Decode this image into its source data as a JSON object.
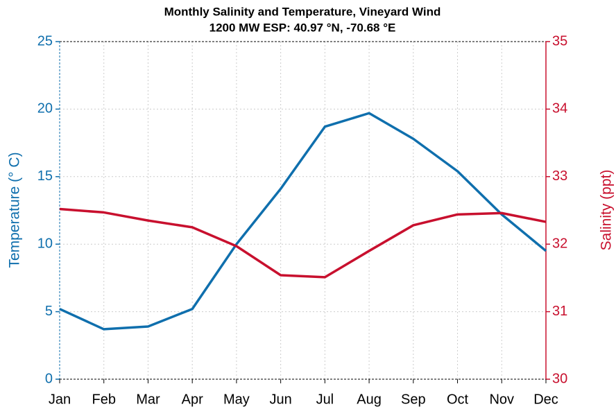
{
  "chart_data": {
    "type": "line",
    "title": "Monthly Salinity and Temperature, Vineyard Wind",
    "subtitle": "1200 MW ESP: 40.97 °N, -70.68 °E",
    "y_label": "Temperature (° C)",
    "y2_label": "Salinity (ppt)",
    "categories": [
      "Jan",
      "Feb",
      "Mar",
      "Apr",
      "May",
      "Jun",
      "Jul",
      "Aug",
      "Sep",
      "Oct",
      "Nov",
      "Dec"
    ],
    "series": [
      {
        "name": "Temperature",
        "color": "#0f6fad",
        "axis": "y",
        "values": [
          5.2,
          3.7,
          3.9,
          5.2,
          10.0,
          14.1,
          18.7,
          19.7,
          17.8,
          15.4,
          12.2,
          9.5
        ]
      },
      {
        "name": "Salinity",
        "color": "#c8102e",
        "axis": "y2",
        "values": [
          32.52,
          32.47,
          32.35,
          32.25,
          31.97,
          31.54,
          31.51,
          31.9,
          32.28,
          32.44,
          32.46,
          32.33
        ]
      }
    ],
    "ylim": [
      0,
      25
    ],
    "yticks": [
      0,
      5,
      10,
      15,
      20,
      25
    ],
    "y2lim": [
      30,
      35
    ],
    "y2ticks": [
      30,
      31,
      32,
      33,
      34,
      35
    ],
    "grid": true
  }
}
